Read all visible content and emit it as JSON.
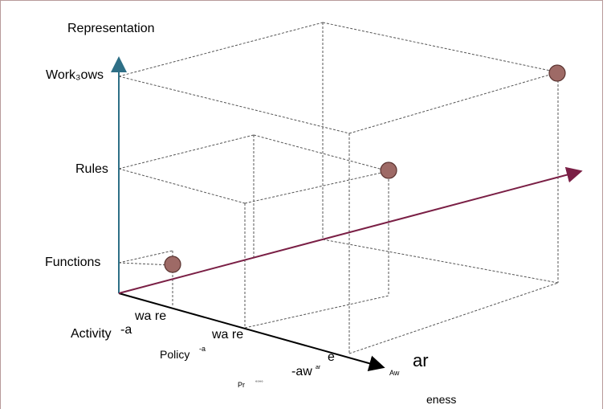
{
  "diagram": {
    "axis_title": "Representation",
    "y_levels": [
      "Work₃ows",
      "Rules",
      "Functions"
    ],
    "x_labels": {
      "activity": "Activity",
      "activity_sup": "-a",
      "activity_tail": "wa re",
      "policy": "Policy",
      "policy_sup": "-a",
      "policy_tail": "wa re",
      "process_a": "Pr",
      "process_b": "°°°°",
      "process_c": "-aw",
      "process_d": "ar",
      "process_e": "e",
      "aw_small": "Aw",
      "ar_big": "ar",
      "eness": "eness"
    },
    "colors": {
      "y_axis": "#2e6f86",
      "x_axis": "#000000",
      "z_axis": "#7a1f45",
      "marker": "#9e6a66",
      "marker_stroke": "#5a3330",
      "dashed": "#555555"
    }
  }
}
